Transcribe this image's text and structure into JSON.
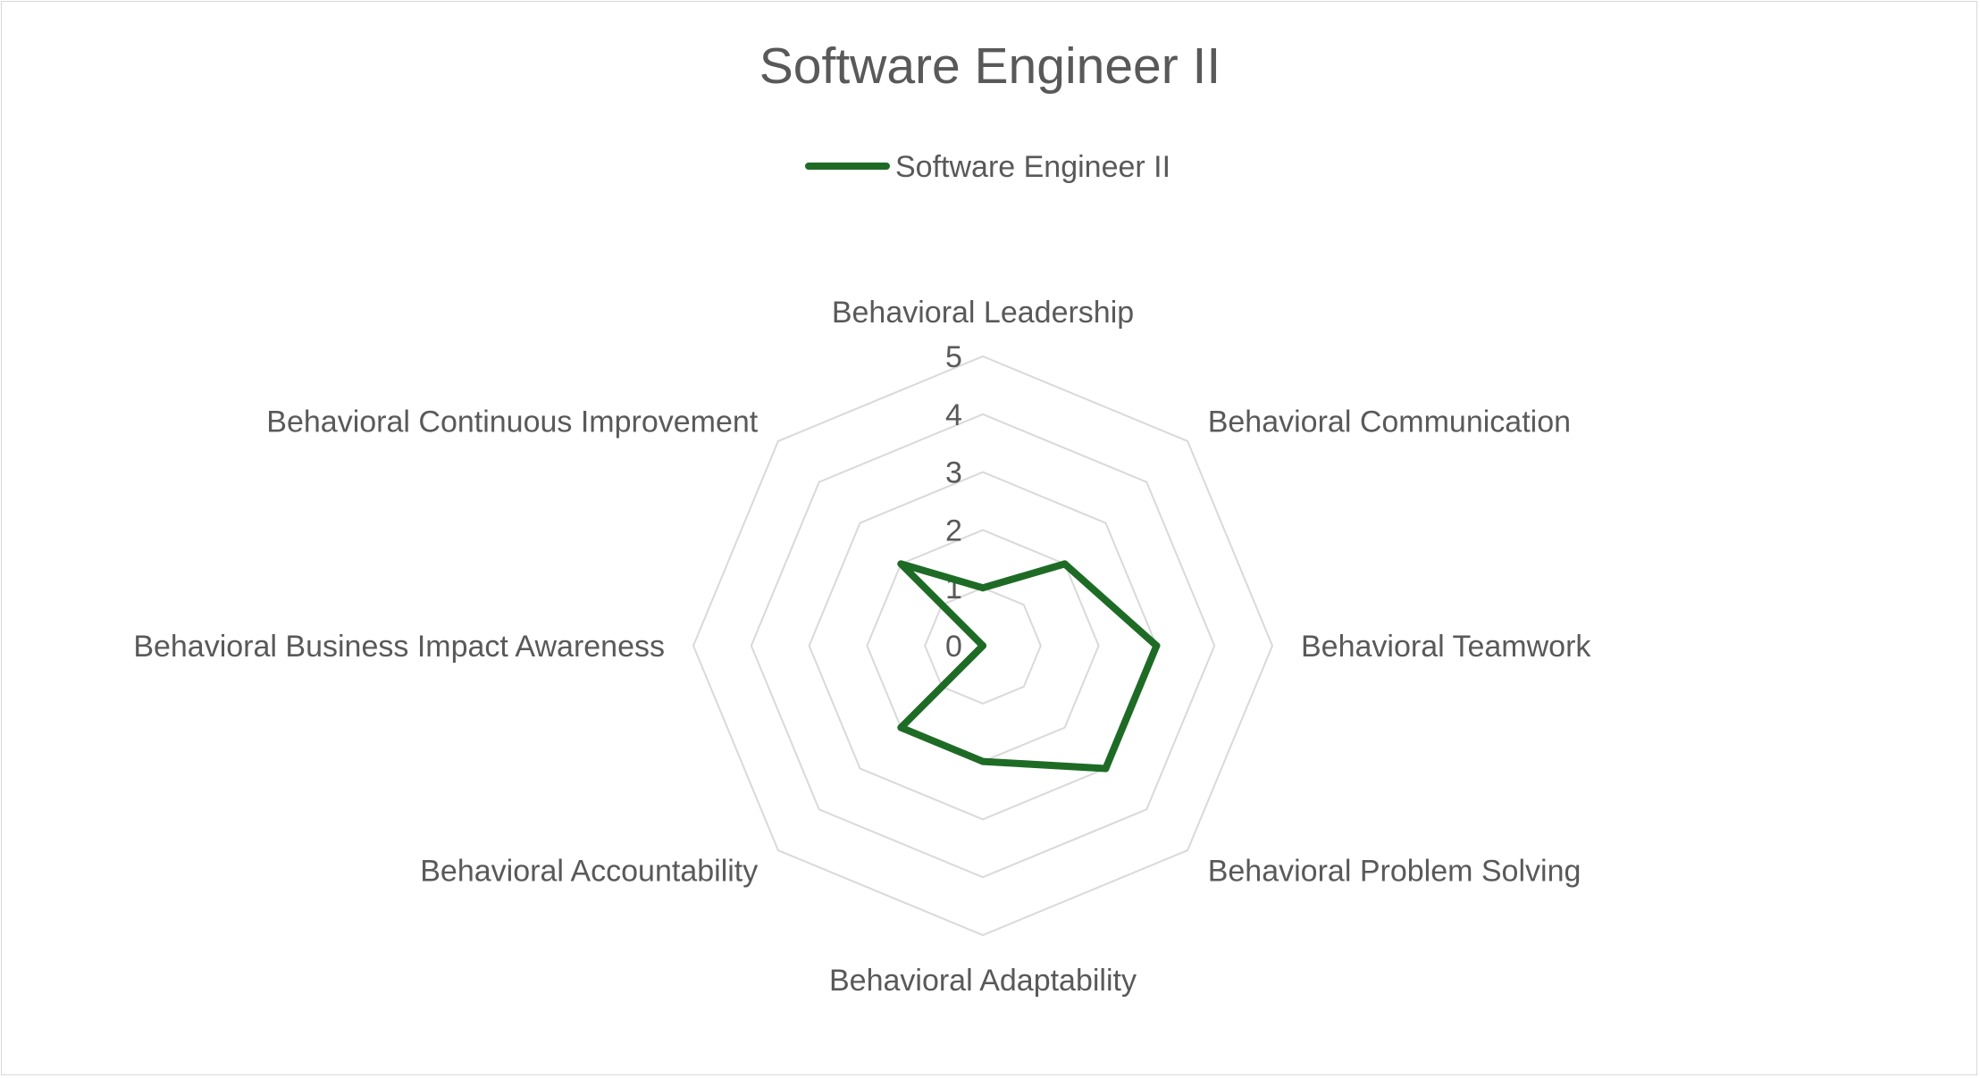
{
  "chart_data": {
    "type": "radar",
    "title": "Software Engineer II",
    "categories": [
      "Behavioral Leadership",
      "Behavioral Communication",
      "Behavioral Teamwork",
      "Behavioral Problem Solving",
      "Behavioral Adaptability",
      "Behavioral Accountability",
      "Behavioral Business Impact Awareness",
      "Behavioral Continuous Improvement"
    ],
    "series": [
      {
        "name": "Software Engineer II",
        "color": "#1e6b26",
        "values": [
          1,
          2,
          3,
          3,
          2,
          2,
          0,
          2
        ]
      }
    ],
    "rlim": [
      0,
      5
    ],
    "ticks": [
      "0",
      "1",
      "2",
      "3",
      "4",
      "5"
    ],
    "grid": true,
    "legend_position": "top",
    "gridline_color": "#d9d9d9"
  }
}
